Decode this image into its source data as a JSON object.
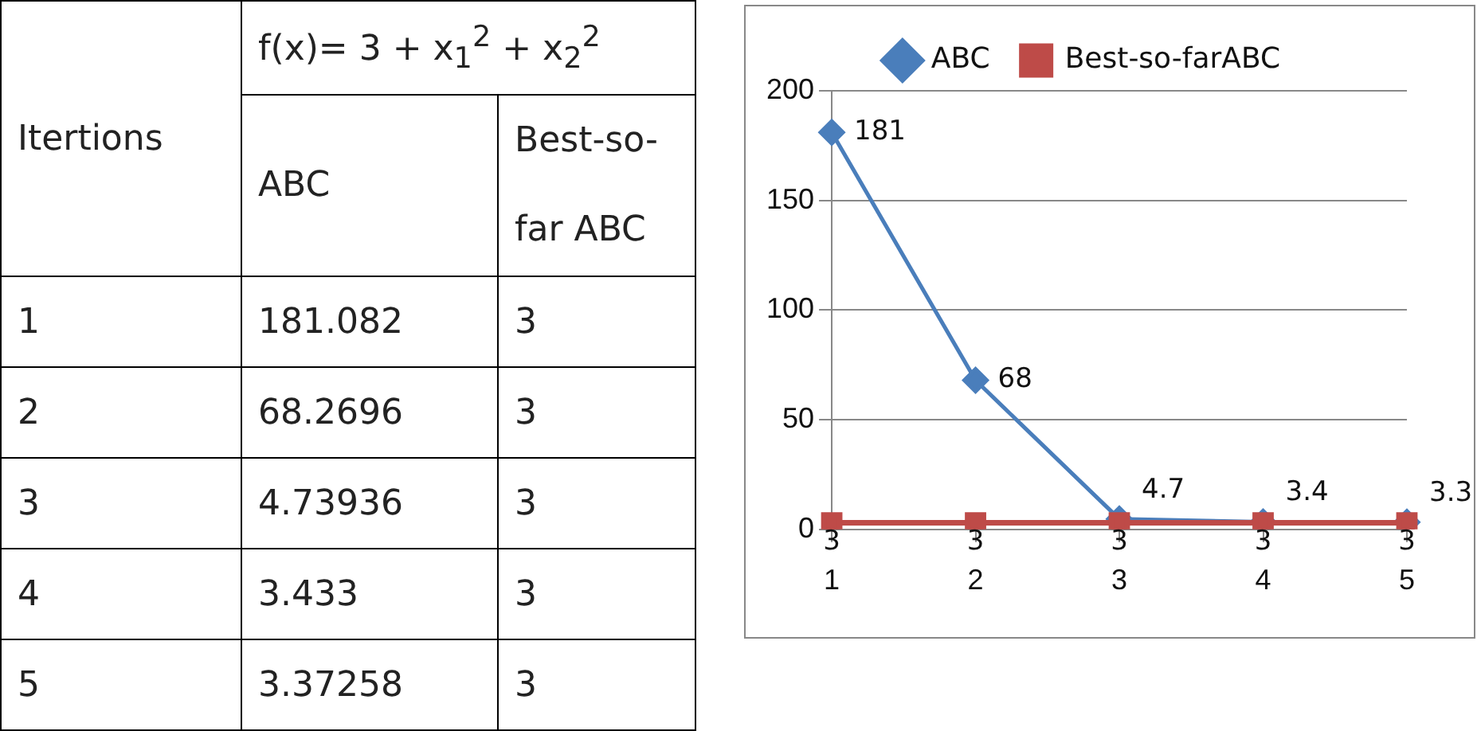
{
  "chart_data": {
    "type": "line",
    "categories": [
      "1",
      "2",
      "3",
      "4",
      "5"
    ],
    "series": [
      {
        "name": "ABC",
        "color": "#4a7ebb",
        "marker": "diamond",
        "values": [
          181,
          68,
          4.7,
          3.4,
          3.3
        ],
        "value_labels": [
          "181",
          "68",
          "4.7",
          "3.4",
          "3.3"
        ]
      },
      {
        "name": "Best-so-farABC",
        "color": "#be4b48",
        "marker": "square",
        "values": [
          3,
          3,
          3,
          3,
          3
        ],
        "value_labels": [
          "3",
          "3",
          "3",
          "3",
          "3"
        ]
      }
    ],
    "ylim": [
      0,
      200
    ],
    "yticks": [
      0,
      50,
      100,
      150,
      200
    ],
    "grid": "y",
    "legend": "top",
    "annotations": [
      "f(x)= 3 + x$_{1}$$^{2}$ + x$_{2}$$^{2}$",
      "Itertions",
      "ABC",
      "Best-so-far ABC",
      "1",
      "181.082",
      "3",
      "2",
      "68.2696",
      "3",
      "3",
      "4.73936",
      "3",
      "4",
      "3.433",
      "3",
      "5",
      "3.37258",
      "3"
    ]
  }
}
